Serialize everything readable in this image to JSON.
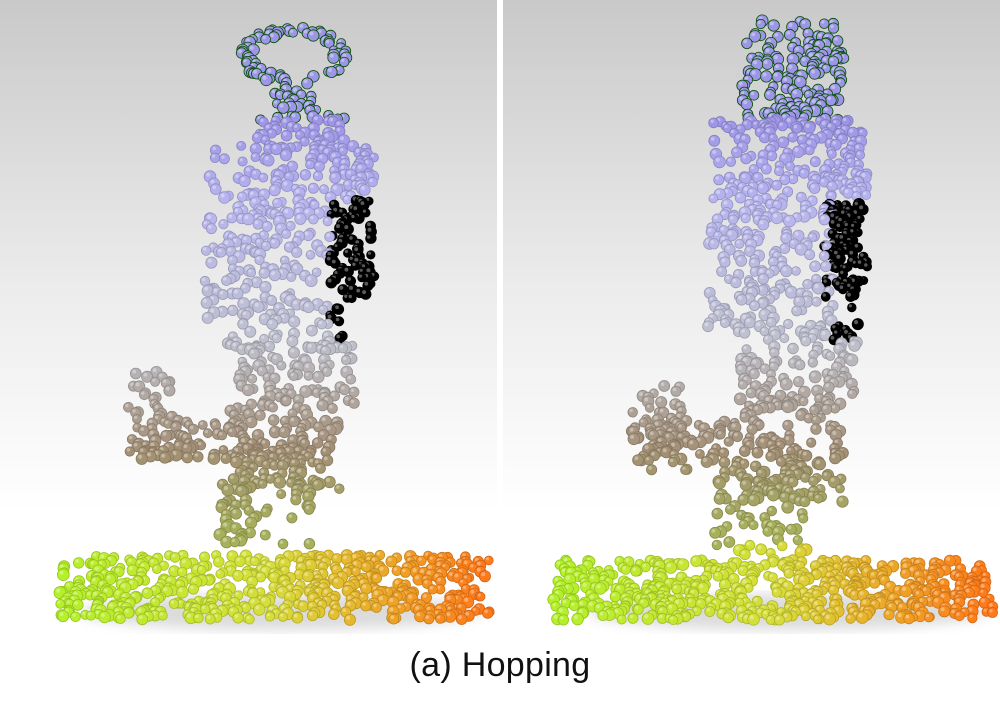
{
  "caption": "(a) Hopping",
  "figure": {
    "panels": [
      {
        "id": "left",
        "subject": "point-cloud-figure-hopping-frame-1"
      },
      {
        "id": "right",
        "subject": "point-cloud-figure-hopping-frame-2"
      }
    ],
    "palette": {
      "top": "#9d95e6",
      "upper_body": "#b7b4ef",
      "side_purple": "#a276c6",
      "torso_grey": "#bfc1cf",
      "lower_brown": "#a38f75",
      "leg_olive": "#a7b05a",
      "foot_yellow": "#d6de3a",
      "ground_green": "#b4f02a",
      "ground_orange": "#ff7a1a"
    }
  }
}
